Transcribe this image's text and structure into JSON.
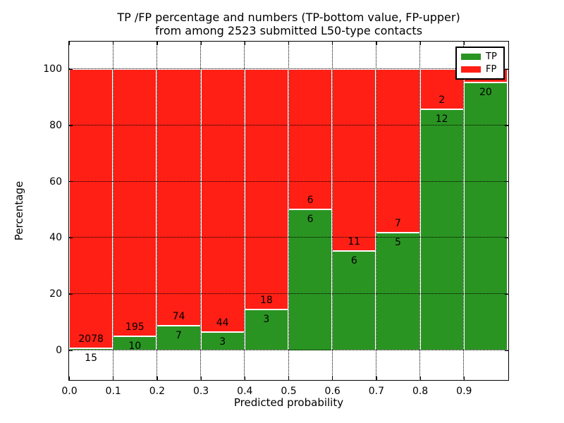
{
  "title": {
    "line1": "TP /FP percentage and numbers (TP-bottom value, FP-upper)",
    "line2": "from among 2523 submitted L50-type contacts"
  },
  "axes": {
    "xlabel": "Predicted probability",
    "ylabel": "Percentage",
    "xticklabels": [
      "0.0",
      "0.1",
      "0.2",
      "0.3",
      "0.4",
      "0.5",
      "0.6",
      "0.7",
      "0.8",
      "0.9"
    ],
    "yticklabels": [
      "0",
      "20",
      "40",
      "60",
      "80",
      "100"
    ]
  },
  "legend": {
    "items": [
      {
        "label": "TP",
        "color": "#2a9422"
      },
      {
        "label": "FP",
        "color": "#ff1f15"
      }
    ]
  },
  "colors": {
    "tp": "#2a9422",
    "fp": "#ff1f15",
    "bar_edge": "#ffffff",
    "grid": "#000000",
    "background": "#ffffff"
  },
  "chart_data": {
    "type": "bar",
    "stacked": true,
    "title": "TP /FP percentage and numbers (TP-bottom value, FP-upper) from among 2523 submitted L50-type contacts",
    "xlabel": "Predicted probability",
    "ylabel": "Percentage",
    "total_contacts": 2523,
    "bin_edges": [
      0.0,
      0.1,
      0.2,
      0.3,
      0.4,
      0.5,
      0.6,
      0.7,
      0.8,
      0.9,
      1.0
    ],
    "categories": [
      "0.0-0.1",
      "0.1-0.2",
      "0.2-0.3",
      "0.3-0.4",
      "0.4-0.5",
      "0.5-0.6",
      "0.6-0.7",
      "0.7-0.8",
      "0.8-0.9",
      "0.9-1.0"
    ],
    "series": [
      {
        "name": "TP",
        "counts": [
          15,
          10,
          7,
          3,
          3,
          6,
          6,
          5,
          12,
          20
        ],
        "pct": [
          0.7,
          4.9,
          8.6,
          6.4,
          14.3,
          50.0,
          35.3,
          41.7,
          85.7,
          95.2
        ]
      },
      {
        "name": "FP",
        "counts": [
          2078,
          195,
          74,
          44,
          18,
          6,
          11,
          7,
          2,
          null
        ],
        "pct": [
          99.3,
          95.1,
          91.4,
          93.6,
          85.7,
          50.0,
          64.7,
          58.3,
          14.3,
          4.8
        ]
      }
    ],
    "xlim": [
      0.0,
      1.0
    ],
    "ylim": [
      -11,
      110
    ],
    "xticks": [
      0.0,
      0.1,
      0.2,
      0.3,
      0.4,
      0.5,
      0.6,
      0.7,
      0.8,
      0.9
    ],
    "yticks": [
      0,
      20,
      40,
      60,
      80,
      100
    ],
    "grid": true,
    "grid_style": "dotted",
    "legend_position": "upper right"
  }
}
